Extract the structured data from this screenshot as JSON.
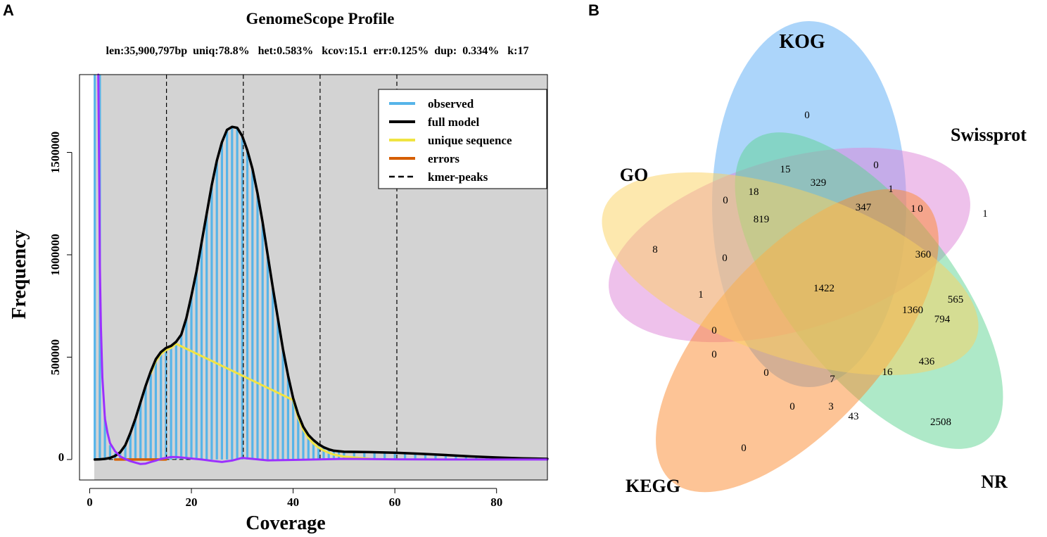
{
  "panels": {
    "a_label": "A",
    "b_label": "B"
  },
  "colors": {
    "plot_bg": "#d3d3d3",
    "observed": "#56b4e9",
    "full_model": "#000000",
    "unique_sequence": "#f0e442",
    "errors": "#d55e00",
    "error_curve": "#9b30ff",
    "peaks": "#000000",
    "set_kog": "#5aabf5",
    "set_swissprot": "#de84d8",
    "set_nr": "#5ed392",
    "set_kegg": "#fb8a2e",
    "set_go": "#fbd25d"
  },
  "chart_data": [
    {
      "type": "line",
      "title": "GenomeScope Profile",
      "subtitle": "len:35,900,797bp  uniq:78.8%   het:0.583%   kcov:15.1  err:0.125%  dup:  0.334%   k:17",
      "xlabel": "Coverage",
      "ylabel": "Frequency",
      "xlim": [
        -2,
        90
      ],
      "ylim": [
        -100000,
        1880000
      ],
      "x_ticks": [
        0,
        20,
        40,
        60,
        80
      ],
      "y_ticks": [
        0,
        500000,
        1000000,
        1500000
      ],
      "y_tick_labels": [
        "0",
        "500000",
        "1000000",
        "1500000"
      ],
      "legend": {
        "position": "top-right",
        "entries": [
          "observed",
          "full model",
          "unique sequence",
          "errors",
          "kmer-peaks"
        ]
      },
      "kmer_peaks": [
        15.1,
        30.2,
        45.3,
        60.4
      ],
      "series": [
        {
          "name": "full model",
          "x": [
            1,
            2,
            3,
            4,
            5,
            6,
            7,
            8,
            9,
            10,
            11,
            12,
            13,
            14,
            15,
            16,
            17,
            18,
            19,
            20,
            21,
            22,
            23,
            24,
            25,
            26,
            27,
            28,
            29,
            30,
            31,
            32,
            33,
            34,
            35,
            36,
            37,
            38,
            39,
            40,
            41,
            42,
            43,
            44,
            45,
            46,
            47,
            48,
            50,
            55,
            60,
            65,
            70,
            75,
            80,
            85,
            90
          ],
          "values": [
            0,
            1000,
            3000,
            8000,
            18000,
            35000,
            70000,
            130000,
            200000,
            280000,
            360000,
            430000,
            490000,
            525000,
            545000,
            555000,
            575000,
            610000,
            690000,
            800000,
            920000,
            1060000,
            1200000,
            1340000,
            1460000,
            1550000,
            1610000,
            1625000,
            1620000,
            1580000,
            1510000,
            1420000,
            1300000,
            1160000,
            1000000,
            840000,
            690000,
            540000,
            410000,
            300000,
            220000,
            160000,
            120000,
            95000,
            75000,
            60000,
            50000,
            43000,
            38000,
            36000,
            33000,
            28000,
            22000,
            15000,
            10000,
            6000,
            3000
          ]
        },
        {
          "name": "unique sequence",
          "x": [
            12,
            13,
            14,
            15,
            16,
            17,
            40,
            41,
            42,
            43,
            44,
            45,
            46,
            47,
            48,
            50,
            55
          ],
          "values": [
            420000,
            480000,
            515000,
            535000,
            545000,
            565000,
            290000,
            205000,
            145000,
            105000,
            78000,
            58000,
            44000,
            33000,
            24000,
            14000,
            4000
          ]
        },
        {
          "name": "errors",
          "x": [
            5,
            6,
            7,
            8,
            9,
            10,
            11,
            12,
            13,
            14,
            15
          ],
          "values": [
            0,
            0,
            0,
            0,
            0,
            0,
            0,
            0,
            0,
            0,
            0
          ]
        },
        {
          "name": "error curve",
          "x": [
            1.7,
            1.9,
            2.0,
            2.2,
            2.5,
            3,
            3.5,
            4,
            5,
            6,
            7,
            8,
            9,
            10,
            11,
            12,
            13,
            14,
            15,
            16,
            17,
            18,
            20,
            22,
            24,
            26,
            28,
            30,
            32,
            35,
            40,
            50,
            60,
            70,
            80,
            90
          ],
          "values": [
            1880000,
            1300000,
            950000,
            650000,
            400000,
            200000,
            130000,
            80000,
            40000,
            15000,
            2000,
            -8000,
            -15000,
            -22000,
            -20000,
            -12000,
            -5000,
            3000,
            8000,
            12000,
            12000,
            10000,
            5000,
            0,
            -6000,
            -12000,
            -5000,
            8000,
            3000,
            -4000,
            -2000,
            3000,
            1000,
            0,
            0,
            0
          ]
        },
        {
          "name": "observed",
          "x": [
            1,
            2,
            3,
            4,
            5,
            6,
            7,
            8,
            9,
            10,
            11,
            12,
            13,
            14,
            15,
            16,
            17,
            18,
            19,
            20,
            21,
            22,
            23,
            24,
            25,
            26,
            27,
            28,
            29,
            30,
            31,
            32,
            33,
            34,
            35,
            36,
            37,
            38,
            39,
            40,
            41,
            42,
            43,
            44,
            45,
            46,
            47,
            48,
            49,
            50,
            52,
            54,
            56,
            58,
            60,
            62,
            64,
            66,
            68,
            70,
            72,
            74,
            76,
            78,
            80,
            82,
            84,
            86,
            88,
            90
          ],
          "values": [
            1880000,
            1880000,
            210000,
            70000,
            30000,
            35000,
            70000,
            130000,
            200000,
            280000,
            360000,
            430000,
            490000,
            525000,
            545000,
            555000,
            575000,
            610000,
            690000,
            800000,
            920000,
            1060000,
            1200000,
            1340000,
            1460000,
            1550000,
            1610000,
            1625000,
            1620000,
            1580000,
            1510000,
            1420000,
            1300000,
            1160000,
            1000000,
            840000,
            690000,
            540000,
            410000,
            300000,
            220000,
            160000,
            120000,
            95000,
            75000,
            60000,
            50000,
            43000,
            40000,
            38000,
            37000,
            36000,
            35000,
            34000,
            33000,
            31000,
            29000,
            26000,
            24000,
            22000,
            19000,
            17000,
            15000,
            12000,
            10000,
            8000,
            6000,
            4000,
            3000,
            3000
          ]
        }
      ]
    },
    {
      "type": "venn",
      "sets": [
        "KOG",
        "Swissprot",
        "NR",
        "KEGG",
        "GO"
      ],
      "region_values": [
        "0",
        "1",
        "2508",
        "0",
        "8",
        "15",
        "0",
        "1",
        "0",
        "329",
        "1",
        "347",
        "0",
        "360",
        "565",
        "794",
        "436",
        "16",
        "43",
        "3",
        "0",
        "7",
        "0",
        "0",
        "0",
        "1",
        "0",
        "18",
        "819",
        "1360",
        "1422"
      ]
    }
  ]
}
